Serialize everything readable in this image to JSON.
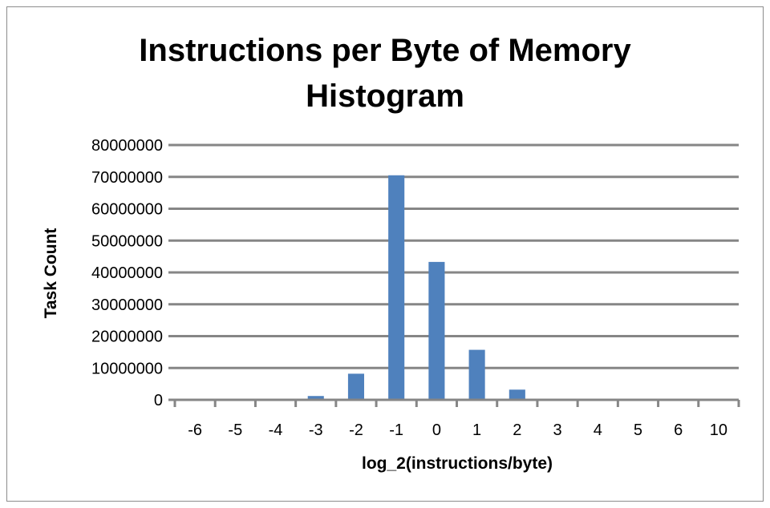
{
  "chart_data": {
    "type": "bar",
    "title_lines": [
      "Instructions per Byte of Memory",
      "Histogram"
    ],
    "xlabel": "log_2(instructions/byte)",
    "ylabel": "Task Count",
    "categories": [
      "-6",
      "-5",
      "-4",
      "-3",
      "-2",
      "-1",
      "0",
      "1",
      "2",
      "3",
      "4",
      "5",
      "6",
      "10"
    ],
    "values": [
      0,
      0,
      0,
      1200000,
      8200000,
      70500000,
      43300000,
      15700000,
      3200000,
      0,
      0,
      0,
      0,
      0
    ],
    "ylim": [
      0,
      80000000
    ],
    "yticks": [
      "0",
      "10000000",
      "20000000",
      "30000000",
      "40000000",
      "50000000",
      "60000000",
      "70000000",
      "80000000"
    ],
    "grid": true,
    "legend": "none",
    "bar_color": "#4f81bd",
    "grid_color": "#868686"
  }
}
